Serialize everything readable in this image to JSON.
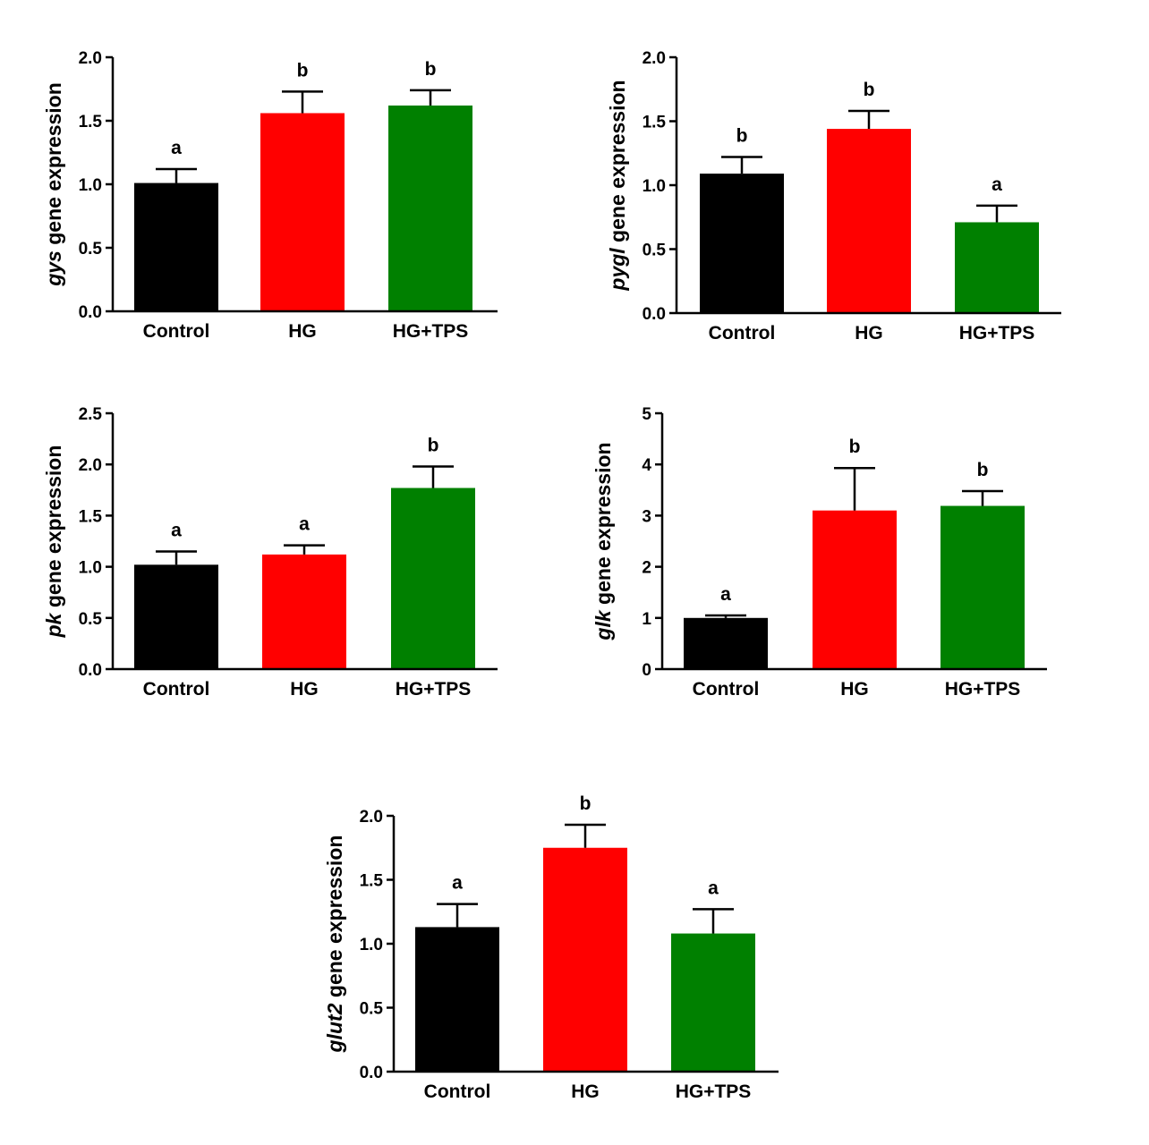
{
  "colors": {
    "Control": "#000000",
    "HG": "#ff0000",
    "HG+TPS": "#008000",
    "axis": "#000000"
  },
  "chart_data": [
    {
      "type": "bar",
      "gene": "gys",
      "ylabel_suffix": " gene expression",
      "categories": [
        "Control",
        "HG",
        "HG+TPS"
      ],
      "values": [
        1.01,
        1.56,
        1.62
      ],
      "errors": [
        0.11,
        0.17,
        0.12
      ],
      "significance": [
        "a",
        "b",
        "b"
      ],
      "ylim": [
        0,
        2.0
      ],
      "yticks": [
        "0.0",
        "0.5",
        "1.0",
        "1.5",
        "2.0"
      ]
    },
    {
      "type": "bar",
      "gene": "pygl",
      "ylabel_suffix": " gene expression",
      "categories": [
        "Control",
        "HG",
        "HG+TPS"
      ],
      "values": [
        1.09,
        1.44,
        0.71
      ],
      "errors": [
        0.13,
        0.14,
        0.13
      ],
      "significance": [
        "b",
        "b",
        "a"
      ],
      "ylim": [
        0,
        2.0
      ],
      "yticks": [
        "0.0",
        "0.5",
        "1.0",
        "1.5",
        "2.0"
      ]
    },
    {
      "type": "bar",
      "gene": "pk",
      "ylabel_suffix": " gene expression",
      "categories": [
        "Control",
        "HG",
        "HG+TPS"
      ],
      "values": [
        1.02,
        1.12,
        1.77
      ],
      "errors": [
        0.13,
        0.09,
        0.21
      ],
      "significance": [
        "a",
        "a",
        "b"
      ],
      "ylim": [
        0,
        2.5
      ],
      "yticks": [
        "0.0",
        "0.5",
        "1.0",
        "1.5",
        "2.0",
        "2.5"
      ]
    },
    {
      "type": "bar",
      "gene": "glk",
      "ylabel_suffix": " gene expression",
      "categories": [
        "Control",
        "HG",
        "HG+TPS"
      ],
      "values": [
        1.0,
        3.1,
        3.19
      ],
      "errors": [
        0.05,
        0.83,
        0.29
      ],
      "significance": [
        "a",
        "b",
        "b"
      ],
      "ylim": [
        0,
        5
      ],
      "yticks": [
        "0",
        "1",
        "2",
        "3",
        "4",
        "5"
      ]
    },
    {
      "type": "bar",
      "gene": "glut2",
      "ylabel_suffix": " gene expression",
      "categories": [
        "Control",
        "HG",
        "HG+TPS"
      ],
      "values": [
        1.13,
        1.75,
        1.08
      ],
      "errors": [
        0.18,
        0.18,
        0.19
      ],
      "significance": [
        "a",
        "b",
        "a"
      ],
      "ylim": [
        0,
        2.0
      ],
      "yticks": [
        "0.0",
        "0.5",
        "1.0",
        "1.5",
        "2.0"
      ]
    }
  ]
}
